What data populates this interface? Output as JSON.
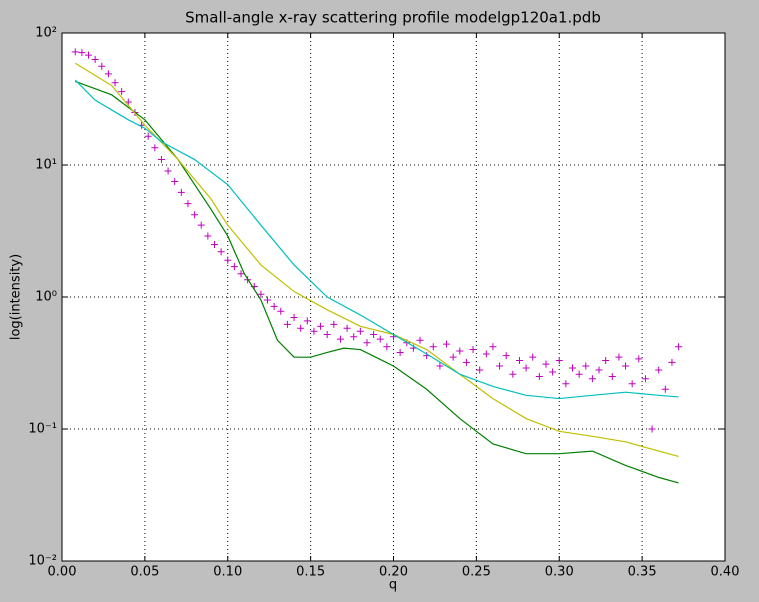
{
  "chart_data": {
    "type": "line",
    "title": "Small-angle x-ray scattering profile modelgp120a1.pdb",
    "xlabel": "q",
    "ylabel": "log(intensity)",
    "yscale": "log",
    "grid": true,
    "xlim": [
      0,
      0.4
    ],
    "xticks": [
      {
        "value": 0,
        "label": "0.00"
      },
      0.05,
      {
        "value": 0.1,
        "label": "0.10"
      },
      0.15,
      {
        "value": 0.2,
        "label": "0.20"
      },
      0.25,
      {
        "value": 0.3,
        "label": "0.30"
      },
      0.35,
      {
        "value": 0.4,
        "label": "0.40"
      }
    ],
    "ylim": [
      0.01,
      100
    ],
    "yticks": [
      {
        "value": 0.01,
        "label": "10⁻²"
      },
      {
        "value": 0.1,
        "label": "10⁻¹"
      },
      {
        "value": 1,
        "label": "10⁰"
      },
      {
        "value": 10,
        "label": "10¹"
      },
      {
        "value": 100,
        "label": "10²"
      }
    ],
    "series": [
      {
        "type": "scatter",
        "marker": "+",
        "color": "#bf00bf",
        "x": [
          0.008,
          0.012,
          0.016,
          0.02,
          0.024,
          0.028,
          0.032,
          0.036,
          0.04,
          0.044,
          0.048,
          0.052,
          0.056,
          0.06,
          0.064,
          0.068,
          0.072,
          0.076,
          0.08,
          0.084,
          0.088,
          0.092,
          0.096,
          0.1,
          0.104,
          0.108,
          0.112,
          0.116,
          0.12,
          0.124,
          0.128,
          0.132,
          0.136,
          0.14,
          0.144,
          0.148,
          0.152,
          0.156,
          0.16,
          0.164,
          0.168,
          0.172,
          0.176,
          0.18,
          0.184,
          0.188,
          0.192,
          0.196,
          0.2,
          0.204,
          0.208,
          0.212,
          0.216,
          0.22,
          0.224,
          0.228,
          0.232,
          0.236,
          0.24,
          0.244,
          0.248,
          0.252,
          0.256,
          0.26,
          0.264,
          0.268,
          0.272,
          0.276,
          0.28,
          0.284,
          0.288,
          0.292,
          0.296,
          0.3,
          0.304,
          0.308,
          0.312,
          0.316,
          0.32,
          0.324,
          0.328,
          0.332,
          0.336,
          0.34,
          0.344,
          0.348,
          0.352,
          0.356,
          0.36,
          0.364,
          0.368,
          0.372
        ],
        "values": [
          72,
          71,
          68,
          63,
          56,
          49,
          42,
          36,
          30,
          25,
          20,
          16.5,
          13.5,
          11,
          9,
          7.5,
          6.2,
          5.1,
          4.2,
          3.5,
          2.9,
          2.5,
          2.2,
          1.9,
          1.7,
          1.5,
          1.35,
          1.2,
          1.05,
          0.95,
          0.85,
          0.78,
          0.62,
          0.7,
          0.58,
          0.66,
          0.55,
          0.6,
          0.52,
          0.62,
          0.48,
          0.58,
          0.5,
          0.55,
          0.45,
          0.52,
          0.48,
          0.42,
          0.5,
          0.38,
          0.45,
          0.41,
          0.47,
          0.36,
          0.42,
          0.3,
          0.44,
          0.35,
          0.39,
          0.32,
          0.4,
          0.28,
          0.37,
          0.42,
          0.3,
          0.36,
          0.26,
          0.33,
          0.29,
          0.35,
          0.25,
          0.31,
          0.27,
          0.33,
          0.22,
          0.29,
          0.26,
          0.3,
          0.24,
          0.28,
          0.33,
          0.25,
          0.35,
          0.3,
          0.22,
          0.34,
          0.24,
          0.1,
          0.28,
          0.2,
          0.32,
          0.42
        ]
      },
      {
        "type": "line",
        "color": "#008000",
        "x": [
          0.008,
          0.03,
          0.05,
          0.07,
          0.09,
          0.1,
          0.11,
          0.12,
          0.13,
          0.14,
          0.15,
          0.16,
          0.17,
          0.18,
          0.2,
          0.22,
          0.24,
          0.26,
          0.28,
          0.3,
          0.32,
          0.34,
          0.36,
          0.372
        ],
        "values": [
          43,
          34,
          22,
          11,
          4.6,
          2.9,
          1.5,
          0.95,
          0.47,
          0.35,
          0.35,
          0.38,
          0.41,
          0.4,
          0.3,
          0.2,
          0.12,
          0.077,
          0.065,
          0.065,
          0.068,
          0.053,
          0.043,
          0.039
        ]
      },
      {
        "type": "line",
        "color": "#bfbf00",
        "x": [
          0.008,
          0.03,
          0.05,
          0.07,
          0.09,
          0.1,
          0.12,
          0.14,
          0.16,
          0.18,
          0.2,
          0.22,
          0.24,
          0.26,
          0.28,
          0.3,
          0.32,
          0.34,
          0.36,
          0.372
        ],
        "values": [
          59,
          40,
          20,
          11,
          5.5,
          3.5,
          1.75,
          1.1,
          0.8,
          0.6,
          0.52,
          0.4,
          0.26,
          0.17,
          0.12,
          0.096,
          0.088,
          0.08,
          0.068,
          0.062
        ]
      },
      {
        "type": "line",
        "color": "#00bfbf",
        "x": [
          0.008,
          0.02,
          0.04,
          0.05,
          0.06,
          0.08,
          0.1,
          0.12,
          0.14,
          0.16,
          0.18,
          0.2,
          0.22,
          0.24,
          0.26,
          0.28,
          0.3,
          0.32,
          0.34,
          0.36,
          0.372
        ],
        "values": [
          44,
          31,
          22,
          19,
          15,
          11,
          7.1,
          3.5,
          1.75,
          1.0,
          0.73,
          0.52,
          0.37,
          0.26,
          0.21,
          0.18,
          0.17,
          0.18,
          0.19,
          0.18,
          0.175
        ]
      }
    ]
  }
}
